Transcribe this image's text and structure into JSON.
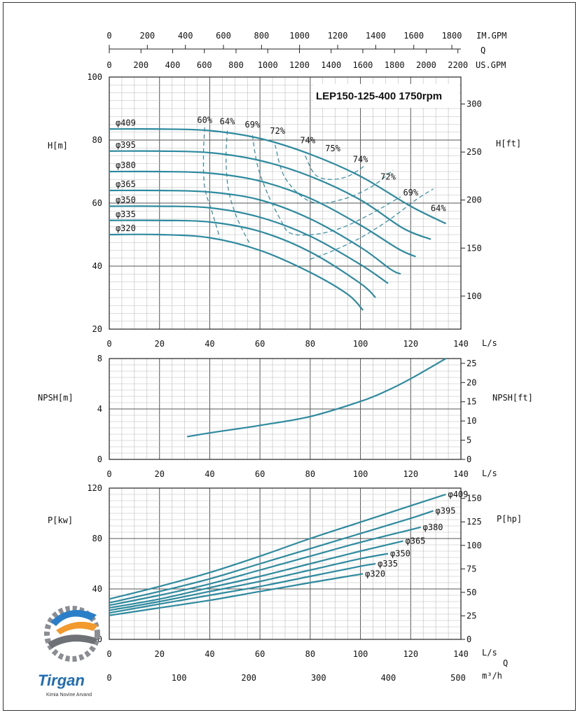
{
  "chart_data": [
    {
      "type": "line",
      "title": "LEP150-125-400 1750rpm",
      "xlabel": "L/s",
      "ylabel": "H[m]",
      "y2label": "H[ft]",
      "xlim": [
        0,
        140
      ],
      "ylim": [
        20,
        100
      ],
      "x_ticks": [
        "0",
        "20",
        "40",
        "60",
        "80",
        "100",
        "120",
        "140"
      ],
      "y_ticks": [
        "20",
        "40",
        "60",
        "80",
        "100"
      ],
      "y2_ticks": [
        "100",
        "150",
        "200",
        "250",
        "300"
      ],
      "top_axes": [
        {
          "label": "IM.GPM",
          "ticks": [
            "0",
            "200",
            "400",
            "600",
            "800",
            "1000",
            "1200",
            "1400",
            "1600",
            "1800"
          ]
        },
        {
          "label": "Q",
          "ticks": []
        },
        {
          "label": "US.GPM",
          "ticks": [
            "0",
            "200",
            "400",
            "600",
            "800",
            "1000",
            "1200",
            "1400",
            "1600",
            "1800",
            "2000",
            "2200"
          ]
        }
      ],
      "series": [
        {
          "name": "φ409",
          "x": [
            0,
            20,
            40,
            60,
            80,
            100,
            120,
            134
          ],
          "values": [
            83.5,
            83.5,
            83,
            80.5,
            75.5,
            68.5,
            59,
            53.5
          ]
        },
        {
          "name": "φ395",
          "x": [
            0,
            20,
            40,
            60,
            80,
            100,
            117,
            128
          ],
          "values": [
            76.5,
            76.5,
            76,
            73.5,
            68.5,
            61,
            52,
            48.5
          ]
        },
        {
          "name": "φ380",
          "x": [
            0,
            20,
            40,
            60,
            80,
            100,
            115,
            122
          ],
          "values": [
            70,
            70,
            69.5,
            67,
            61.5,
            53,
            45.5,
            43
          ]
        },
        {
          "name": "φ365",
          "x": [
            0,
            20,
            40,
            60,
            80,
            100,
            112,
            116
          ],
          "values": [
            64,
            64,
            63.5,
            61,
            55,
            46,
            39,
            37.5
          ]
        },
        {
          "name": "φ350",
          "x": [
            0,
            20,
            40,
            60,
            80,
            100,
            111
          ],
          "values": [
            59,
            59,
            58.5,
            55.5,
            49.5,
            40.5,
            34.5
          ]
        },
        {
          "name": "φ335",
          "x": [
            0,
            20,
            40,
            60,
            80,
            100,
            106
          ],
          "values": [
            54.5,
            54.5,
            54,
            51,
            44.5,
            34.5,
            30
          ]
        },
        {
          "name": "φ320",
          "x": [
            0,
            20,
            40,
            60,
            80,
            95,
            101
          ],
          "values": [
            50,
            50,
            49,
            45,
            38,
            31,
            26
          ]
        }
      ],
      "efficiency_labels": [
        "60%",
        "64%",
        "69%",
        "72%",
        "74%",
        "75%",
        "74%",
        "72%",
        "69%",
        "64%"
      ]
    },
    {
      "type": "line",
      "xlabel": "L/s",
      "ylabel": "NPSH[m]",
      "y2label": "NPSH[ft]",
      "xlim": [
        0,
        140
      ],
      "ylim": [
        0,
        8
      ],
      "x_ticks": [
        "0",
        "20",
        "40",
        "60",
        "80",
        "100",
        "120",
        "140"
      ],
      "y_ticks": [
        "0",
        "4",
        "8"
      ],
      "y2_ticks": [
        "0",
        "5",
        "10",
        "15",
        "20",
        "25"
      ],
      "series": [
        {
          "x": [
            31,
            40,
            60,
            80,
            100,
            110,
            120,
            134
          ],
          "values": [
            1.8,
            2.1,
            2.7,
            3.4,
            4.6,
            5.4,
            6.4,
            8
          ]
        }
      ]
    },
    {
      "type": "line",
      "xlabel": "L/s",
      "ylabel": "P[kw]",
      "y2label": "P[hp]",
      "xlim": [
        0,
        140
      ],
      "ylim": [
        0,
        120
      ],
      "x_ticks": [
        "0",
        "20",
        "40",
        "60",
        "80",
        "100",
        "120",
        "140"
      ],
      "y_ticks": [
        "0",
        "40",
        "80",
        "120"
      ],
      "y2_ticks": [
        "0",
        "25",
        "50",
        "75",
        "100",
        "125",
        "150"
      ],
      "bottom_axis": {
        "label_top": "Q",
        "label": "m³/h",
        "ticks": [
          "0",
          "100",
          "200",
          "300",
          "400",
          "500"
        ]
      },
      "series": [
        {
          "name": "φ409",
          "x": [
            0,
            20,
            40,
            60,
            80,
            100,
            120,
            134
          ],
          "values": [
            32,
            42,
            53,
            66,
            80,
            93,
            106,
            115
          ]
        },
        {
          "name": "φ395",
          "x": [
            0,
            20,
            40,
            60,
            80,
            100,
            120,
            129
          ],
          "values": [
            29,
            38,
            48,
            60,
            72,
            84,
            96,
            102
          ]
        },
        {
          "name": "φ380",
          "x": [
            0,
            20,
            40,
            60,
            80,
            100,
            120,
            124
          ],
          "values": [
            27,
            35,
            44,
            55,
            66,
            77,
            87,
            89
          ]
        },
        {
          "name": "φ365",
          "x": [
            0,
            20,
            40,
            60,
            80,
            100,
            117
          ],
          "values": [
            25,
            32,
            41,
            50,
            60,
            70,
            78
          ]
        },
        {
          "name": "φ350",
          "x": [
            0,
            20,
            40,
            60,
            80,
            100,
            111
          ],
          "values": [
            23,
            30,
            38,
            46,
            55,
            64,
            68
          ]
        },
        {
          "name": "φ335",
          "x": [
            0,
            20,
            40,
            60,
            80,
            100,
            106
          ],
          "values": [
            21,
            28,
            35,
            42,
            50,
            58,
            60
          ]
        },
        {
          "name": "φ320",
          "x": [
            0,
            20,
            40,
            60,
            80,
            101
          ],
          "values": [
            19,
            25,
            31,
            38,
            45,
            52
          ]
        }
      ]
    }
  ],
  "logo": {
    "name": "Tirgan",
    "subtitle": "Kimia Novine Arvand"
  }
}
